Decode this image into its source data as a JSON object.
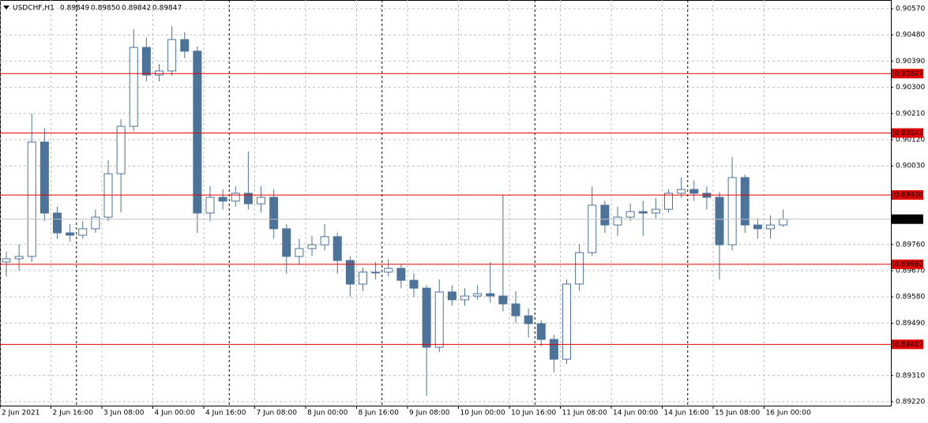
{
  "chart_data": {
    "type": "candlestick",
    "header": {
      "symbol": "USDCHF,H1",
      "ohlc": [
        "0.89849",
        "0.89850",
        "0.89842",
        "0.89847"
      ]
    },
    "color": "#4d7399",
    "categories": [
      "2 Jun 2021",
      null,
      null,
      null,
      "2 Jun 16:00",
      null,
      null,
      null,
      "3 Jun 08:00",
      null,
      null,
      null,
      "4 Jun 00:00",
      null,
      null,
      null,
      "4 Jun 16:00",
      null,
      null,
      null,
      "7 Jun 08:00",
      null,
      null,
      null,
      "8 Jun 00:00",
      null,
      null,
      null,
      "8 Jun 16:00",
      null,
      null,
      null,
      "9 Jun 08:00",
      null,
      null,
      null,
      "10 Jun 00:00",
      null,
      null,
      null,
      "10 Jun 16:00",
      null,
      null,
      null,
      "11 Jun 08:00",
      null,
      null,
      null,
      "14 Jun 00:00",
      null,
      null,
      null,
      "14 Jun 16:00",
      null,
      null,
      null,
      "15 Jun 08:00",
      null,
      null,
      null,
      "16 Jun 00:00",
      null
    ],
    "open": [
      0.897,
      0.89711,
      0.89719,
      0.90112,
      0.89868,
      0.898,
      0.89792,
      0.89814,
      0.89854,
      0.90003,
      0.90166,
      0.90437,
      0.90342,
      0.90356,
      0.90464,
      0.90424,
      0.89868,
      0.89922,
      0.89909,
      0.89936,
      0.899,
      0.89922,
      0.89814,
      0.89719,
      0.89746,
      0.89759,
      0.89787,
      0.89705,
      0.89624,
      0.89665,
      0.89665,
      0.89678,
      0.89637,
      0.8961,
      0.89407,
      0.89597,
      0.8957,
      0.89583,
      0.89591,
      0.89583,
      0.89556,
      0.89515,
      0.89488,
      0.89434,
      0.89366,
      0.89624,
      0.89732,
      0.89895,
      0.89827,
      0.89854,
      0.89873,
      0.89868,
      0.89881,
      0.89936,
      0.89949,
      0.89936,
      0.89922,
      0.89759,
      0.8999,
      0.89827,
      0.89814,
      0.89827
    ],
    "high": [
      0.89735,
      0.8976,
      0.9021,
      0.9016,
      0.8989,
      0.8983,
      0.8984,
      0.8988,
      0.9005,
      0.9019,
      0.905,
      0.9047,
      0.9038,
      0.9051,
      0.9049,
      0.9044,
      0.8996,
      0.8995,
      0.8996,
      0.9008,
      0.8996,
      0.8995,
      0.8983,
      0.8978,
      0.8979,
      0.8983,
      0.898,
      0.8972,
      0.8968,
      0.897,
      0.8971,
      0.8969,
      0.8966,
      0.8962,
      0.8964,
      0.8962,
      0.8961,
      0.8962,
      0.897,
      0.8993,
      0.896,
      0.8954,
      0.895,
      0.8945,
      0.8964,
      0.8976,
      0.8996,
      0.8991,
      0.8989,
      0.899,
      0.8991,
      0.8992,
      0.8995,
      0.8999,
      0.8998,
      0.8996,
      0.8994,
      0.9006,
      0.9,
      0.8985,
      0.8986,
      0.8988
    ],
    "low": [
      0.8965,
      0.8967,
      0.897,
      0.8984,
      0.8978,
      0.8977,
      0.8978,
      0.898,
      0.8984,
      0.8987,
      0.9015,
      0.9032,
      0.9032,
      0.9034,
      0.904,
      0.898,
      0.8984,
      0.8988,
      0.8989,
      0.8988,
      0.8987,
      0.8978,
      0.8966,
      0.8969,
      0.8972,
      0.8974,
      0.8966,
      0.8958,
      0.896,
      0.8964,
      0.8965,
      0.8961,
      0.8958,
      0.8924,
      0.8939,
      0.8955,
      0.8955,
      0.8957,
      0.8956,
      0.8953,
      0.8949,
      0.8944,
      0.8941,
      0.8932,
      0.8935,
      0.896,
      0.8972,
      0.898,
      0.8979,
      0.8984,
      0.8979,
      0.8985,
      0.8987,
      0.8992,
      0.8991,
      0.8988,
      0.8964,
      0.8974,
      0.898,
      0.8978,
      0.8978,
      0.8982
    ],
    "close": [
      0.89711,
      0.89719,
      0.90112,
      0.89868,
      0.898,
      0.89792,
      0.89814,
      0.89854,
      0.90003,
      0.90166,
      0.90437,
      0.90342,
      0.90356,
      0.90464,
      0.90424,
      0.89868,
      0.89922,
      0.89909,
      0.89936,
      0.899,
      0.89922,
      0.89814,
      0.89719,
      0.89746,
      0.89759,
      0.89787,
      0.89705,
      0.89624,
      0.89665,
      0.89665,
      0.89678,
      0.89637,
      0.8961,
      0.89407,
      0.89597,
      0.8957,
      0.89583,
      0.89591,
      0.89583,
      0.89556,
      0.89515,
      0.89488,
      0.89434,
      0.89366,
      0.89624,
      0.89732,
      0.89895,
      0.89827,
      0.89854,
      0.89873,
      0.89868,
      0.89881,
      0.89936,
      0.89949,
      0.89936,
      0.89922,
      0.89759,
      0.8999,
      0.89827,
      0.89814,
      0.89827,
      0.89847
    ],
    "ylim": [
      0.8922,
      0.9057
    ],
    "yticks": [
      {
        "value": 0.9057,
        "label": "0.90570"
      },
      {
        "value": 0.9048,
        "label": "0.90480"
      },
      {
        "value": 0.9039,
        "label": "0.90390"
      },
      {
        "value": 0.903,
        "label": "0.90300"
      },
      {
        "value": 0.9021,
        "label": "0.90210"
      },
      {
        "value": 0.9012,
        "label": "0.90120"
      },
      {
        "value": 0.9003,
        "label": "0.90030"
      },
      {
        "value": 0.8976,
        "label": "0.89760"
      },
      {
        "value": 0.8967,
        "label": "0.89670"
      },
      {
        "value": 0.8958,
        "label": "0.89580"
      },
      {
        "value": 0.8949,
        "label": "0.89490"
      },
      {
        "value": 0.8931,
        "label": "0.89310"
      },
      {
        "value": 0.8922,
        "label": "0.89220"
      }
    ],
    "levels": [
      {
        "value": 0.90347,
        "label": "0.90347"
      },
      {
        "value": 0.90143,
        "label": "0.90143"
      },
      {
        "value": 0.8993,
        "label": "0.89930"
      },
      {
        "value": 0.89692,
        "label": "0.89692"
      },
      {
        "value": 0.89417,
        "label": "0.89417"
      }
    ],
    "level_color": "#e00000",
    "current_price": {
      "value": 0.89847,
      "label": "0.89847"
    },
    "grid": true
  }
}
